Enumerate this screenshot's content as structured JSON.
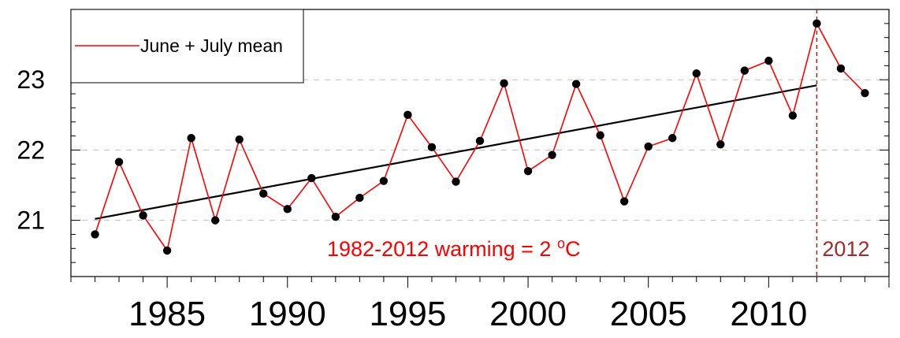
{
  "chart_data": {
    "type": "line",
    "title": "",
    "xlabel": "",
    "ylabel": "",
    "xlim": [
      1981,
      2015
    ],
    "ylim": [
      20.2,
      24.0
    ],
    "x_ticks": [
      1985,
      1990,
      1995,
      2000,
      2005,
      2010
    ],
    "x_tick_labels": [
      "1985",
      "1990",
      "1995",
      "2000",
      "2005",
      "2010"
    ],
    "y_ticks": [
      21,
      22,
      23
    ],
    "y_tick_labels": [
      "21",
      "22",
      "23"
    ],
    "grid": true,
    "legend_position": "top-left",
    "series": [
      {
        "name": "June + July mean",
        "color": "#ff0000",
        "marker": "filled-circle",
        "marker_color": "#000000",
        "x": [
          1982,
          1983,
          1984,
          1985,
          1986,
          1987,
          1988,
          1989,
          1990,
          1991,
          1992,
          1993,
          1994,
          1995,
          1996,
          1997,
          1998,
          1999,
          2000,
          2001,
          2002,
          2003,
          2004,
          2005,
          2006,
          2007,
          2008,
          2009,
          2010,
          2011,
          2012,
          2013,
          2014
        ],
        "values": [
          20.8,
          21.83,
          21.07,
          20.57,
          22.17,
          21.0,
          22.15,
          21.38,
          21.16,
          21.6,
          21.05,
          21.32,
          21.56,
          22.5,
          22.04,
          21.55,
          22.13,
          22.95,
          21.7,
          21.93,
          22.94,
          22.21,
          21.27,
          22.05,
          22.17,
          23.09,
          22.08,
          23.13,
          23.27,
          22.49,
          23.8,
          23.16,
          22.81
        ]
      },
      {
        "type": "trend",
        "color": "#000000",
        "x": [
          1982,
          2012
        ],
        "values": [
          21.02,
          22.92
        ]
      }
    ],
    "reference_line": {
      "x": 2012,
      "color": "#a52a2a",
      "style": "dashed",
      "label": "2012"
    },
    "annotation": {
      "text": "1982-2012 warming =  2 ",
      "superscript": "o",
      "unit": "C",
      "color": "#ff0000"
    }
  }
}
